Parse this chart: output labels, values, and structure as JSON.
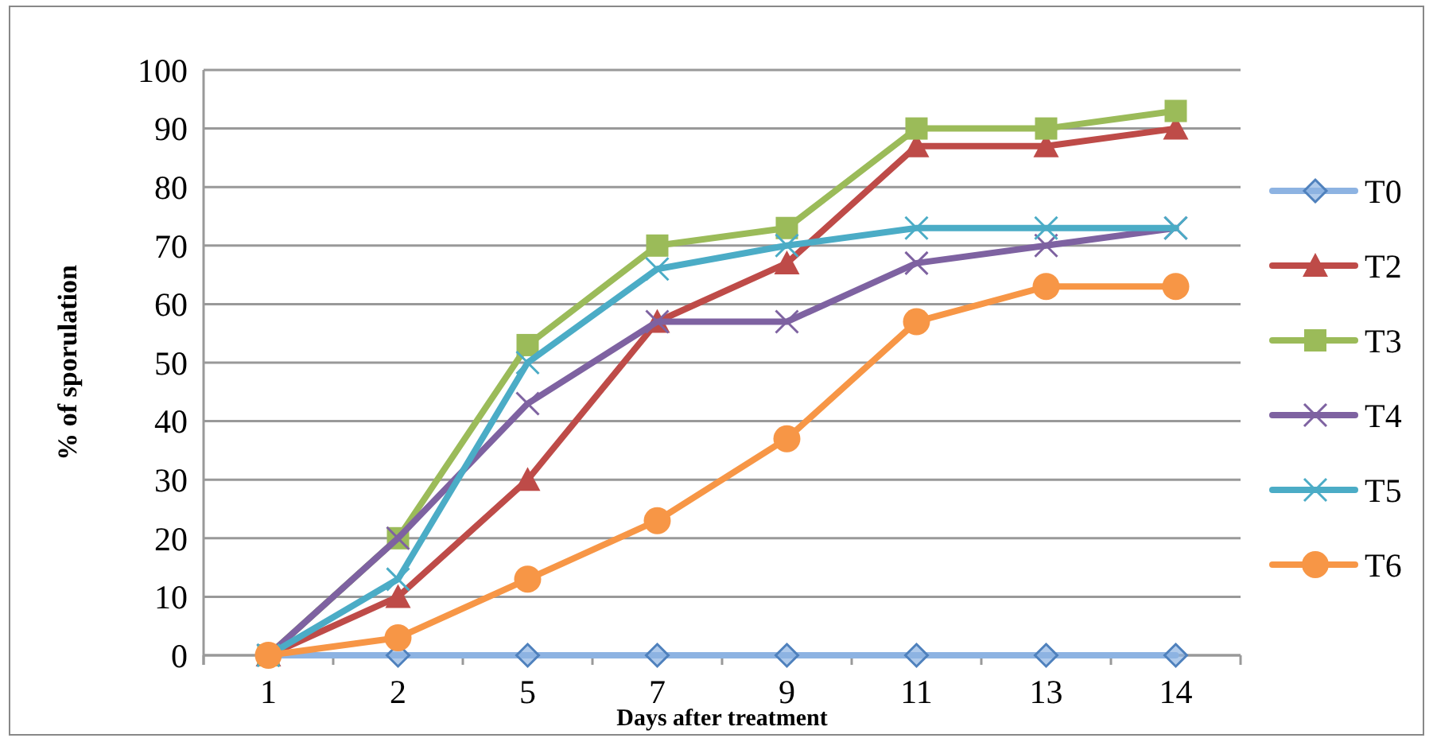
{
  "chart_data": {
    "type": "line",
    "xlabel": "Days after treatment",
    "ylabel": "% of sporulation",
    "categories": [
      "1",
      "2",
      "5",
      "7",
      "9",
      "11",
      "13",
      "14"
    ],
    "ylim": [
      0,
      100
    ],
    "yticks": [
      0,
      10,
      20,
      30,
      40,
      50,
      60,
      70,
      80,
      90,
      100
    ],
    "grid": "y",
    "legend": "right",
    "series": [
      {
        "name": "T0",
        "color": "#8db3e2",
        "marker": "diamond",
        "values": [
          0,
          0,
          0,
          0,
          0,
          0,
          0,
          0
        ]
      },
      {
        "name": "T2",
        "color": "#be4b48",
        "marker": "triangle",
        "values": [
          0,
          10,
          30,
          57,
          67,
          87,
          87,
          90
        ]
      },
      {
        "name": "T3",
        "color": "#9bbb59",
        "marker": "square",
        "values": [
          0,
          20,
          53,
          70,
          73,
          90,
          90,
          93
        ]
      },
      {
        "name": "T4",
        "color": "#7e62a1",
        "marker": "cross",
        "values": [
          0,
          20,
          43,
          57,
          57,
          67,
          70,
          73
        ]
      },
      {
        "name": "T5",
        "color": "#4bacc6",
        "marker": "cross",
        "values": [
          0,
          13,
          50,
          66,
          70,
          73,
          73,
          73
        ]
      },
      {
        "name": "T6",
        "color": "#f79646",
        "marker": "circle",
        "values": [
          0,
          3,
          13,
          23,
          37,
          57,
          63,
          63
        ]
      }
    ]
  }
}
